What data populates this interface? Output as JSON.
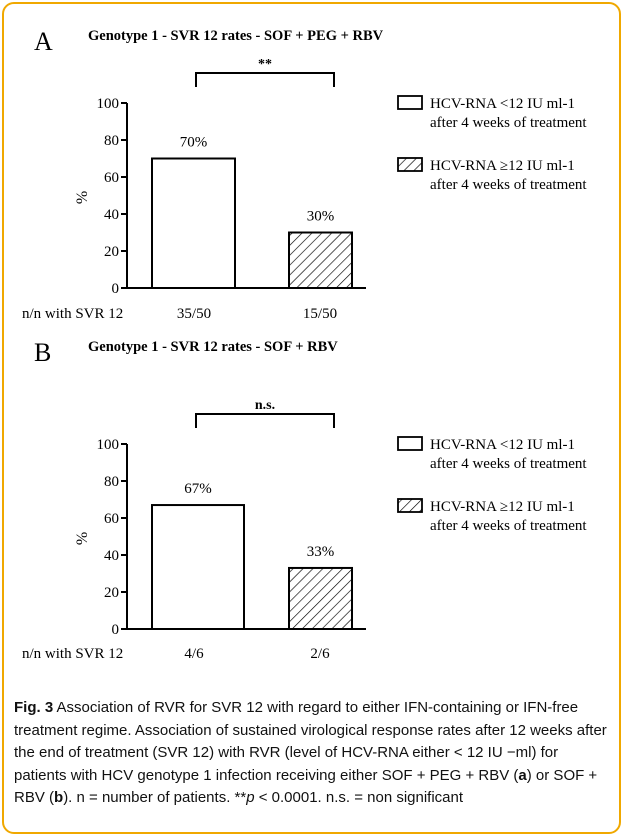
{
  "colors": {
    "frame_border": "#f0a800",
    "bar_stroke": "#000000",
    "bar_fill": "#ffffff"
  },
  "legend": {
    "white": {
      "line1": "HCV-RNA <12 IU ml-1",
      "line2": "after 4 weeks of treatment"
    },
    "hatched": {
      "line1": "HCV-RNA ≥12 IU ml-1",
      "line2": "after 4 weeks of treatment"
    }
  },
  "chart_data": [
    {
      "type": "bar",
      "panel": "A",
      "title": "Genotype 1 - SVR 12 rates - SOF + PEG + RBV",
      "ylabel": "%",
      "ylim": [
        0,
        100
      ],
      "yticks": [
        "0",
        "20",
        "40",
        "60",
        "80",
        "100"
      ],
      "row_label": "n/n with SVR 12",
      "categories": [
        "35/50",
        "15/50"
      ],
      "values": [
        70,
        30
      ],
      "data_labels": [
        "70%",
        "30%"
      ],
      "patterns": [
        "white",
        "hatched"
      ],
      "significance": "**"
    },
    {
      "type": "bar",
      "panel": "B",
      "title": "Genotype 1 - SVR 12 rates - SOF + RBV",
      "ylabel": "%",
      "ylim": [
        0,
        100
      ],
      "yticks": [
        "0",
        "20",
        "40",
        "60",
        "80",
        "100"
      ],
      "row_label": "n/n with SVR 12",
      "categories": [
        "4/6",
        "2/6"
      ],
      "values": [
        67,
        33
      ],
      "data_labels": [
        "67%",
        "33%"
      ],
      "patterns": [
        "white",
        "hatched"
      ],
      "significance": "n.s."
    }
  ],
  "caption": {
    "fig_label": "Fig. 3",
    "text1": " Association of RVR for SVR 12 with regard to either IFN-containing or IFN-free treatment regime. Association of sustained virological response rates after 12 weeks after the end of treatment (SVR 12) with RVR (level of HCV-RNA either < 12 IU −ml) for patients with HCV genotype 1 infection receiving either SOF + PEG + RBV (",
    "ref_a": "a",
    "text2": ") or SOF + RBV (",
    "ref_b": "b",
    "text3": "). n = number of patients. **",
    "p_symbol": "p",
    "text4": " < 0.0001. n.s. = non significant"
  }
}
